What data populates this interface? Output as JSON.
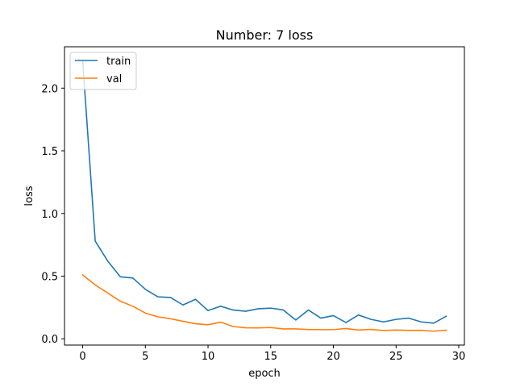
{
  "chart_data": {
    "type": "line",
    "title": "Number: 7 loss",
    "xlabel": "epoch",
    "ylabel": "loss",
    "xlim": [
      -1.45,
      30.45
    ],
    "ylim": [
      -0.05,
      2.33
    ],
    "x_ticks": [
      0,
      5,
      10,
      15,
      20,
      25,
      30
    ],
    "y_ticks": [
      0.0,
      0.5,
      1.0,
      1.5,
      2.0
    ],
    "x_tick_labels": [
      "0",
      "5",
      "10",
      "15",
      "20",
      "25",
      "30"
    ],
    "y_tick_labels": [
      "0.0",
      "0.5",
      "1.0",
      "1.5",
      "2.0"
    ],
    "grid": false,
    "legend_position": "upper left",
    "x": [
      0,
      1,
      2,
      3,
      4,
      5,
      6,
      7,
      8,
      9,
      10,
      11,
      12,
      13,
      14,
      15,
      16,
      17,
      18,
      19,
      20,
      21,
      22,
      23,
      24,
      25,
      26,
      27,
      28,
      29
    ],
    "series": [
      {
        "name": "train",
        "color": "#1f77b4",
        "values": [
          2.22,
          0.78,
          0.62,
          0.495,
          0.485,
          0.395,
          0.335,
          0.33,
          0.27,
          0.315,
          0.225,
          0.26,
          0.23,
          0.22,
          0.24,
          0.245,
          0.23,
          0.15,
          0.23,
          0.165,
          0.185,
          0.13,
          0.19,
          0.155,
          0.135,
          0.155,
          0.165,
          0.135,
          0.125,
          0.18
        ]
      },
      {
        "name": "val",
        "color": "#ff7f0e",
        "values": [
          0.51,
          0.43,
          0.365,
          0.3,
          0.26,
          0.205,
          0.175,
          0.16,
          0.14,
          0.12,
          0.112,
          0.133,
          0.098,
          0.088,
          0.087,
          0.09,
          0.079,
          0.079,
          0.074,
          0.073,
          0.073,
          0.082,
          0.07,
          0.075,
          0.066,
          0.07,
          0.067,
          0.068,
          0.061,
          0.068
        ]
      }
    ]
  }
}
